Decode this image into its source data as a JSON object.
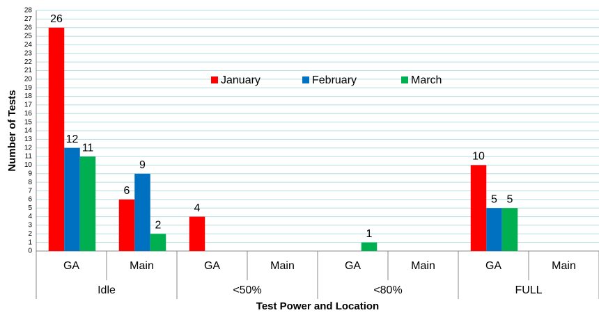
{
  "chart_data": {
    "type": "bar",
    "x_label": "Test Power and Location",
    "y_label": "Number of Tests",
    "categories": [
      "GA",
      "Main",
      "GA",
      "Main",
      "GA",
      "Main",
      "GA",
      "Main"
    ],
    "groups": [
      "Idle",
      "<50%",
      "<80%",
      "FULL"
    ],
    "series": [
      {
        "name": "January",
        "color": "#ff0000",
        "values": [
          26,
          6,
          4,
          null,
          null,
          null,
          10,
          null
        ]
      },
      {
        "name": "February",
        "color": "#0070c0",
        "values": [
          12,
          9,
          null,
          null,
          null,
          null,
          5,
          null
        ]
      },
      {
        "name": "March",
        "color": "#00b050",
        "values": [
          11,
          2,
          null,
          null,
          1,
          null,
          5,
          null
        ]
      }
    ],
    "ylim": [
      0,
      28
    ],
    "yticks": [
      0,
      1,
      2,
      3,
      4,
      5,
      6,
      7,
      8,
      9,
      10,
      11,
      12,
      13,
      14,
      15,
      16,
      17,
      18,
      19,
      20,
      21,
      22,
      23,
      24,
      25,
      26,
      27,
      28
    ],
    "grid": true
  }
}
